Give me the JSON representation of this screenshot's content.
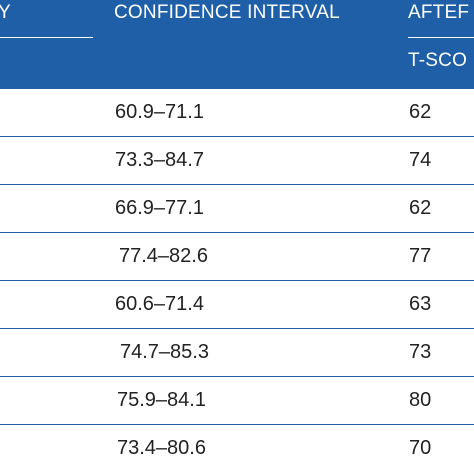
{
  "header": {
    "col1_text": "Y",
    "col2_text": "CONFIDENCE INTERVAL",
    "col3_text": "AFTEF",
    "col3_sub_text": "T-SCO"
  },
  "rows": [
    {
      "ci": "60.9–71.1",
      "t": "62"
    },
    {
      "ci": "73.3–84.7",
      "t": "74"
    },
    {
      "ci": "66.9–77.1",
      "t": "62"
    },
    {
      "ci": "77.4–82.6",
      "t": "77"
    },
    {
      "ci": "60.6–71.4",
      "t": "63"
    },
    {
      "ci": "74.7–85.3",
      "t": "73"
    },
    {
      "ci": "75.9–84.1",
      "t": "80"
    },
    {
      "ci": "73.4–80.6",
      "t": "70"
    }
  ],
  "colors": {
    "header_bg": "#1f5fa8",
    "row_divider": "#1f5fa8",
    "text": "#222222"
  }
}
